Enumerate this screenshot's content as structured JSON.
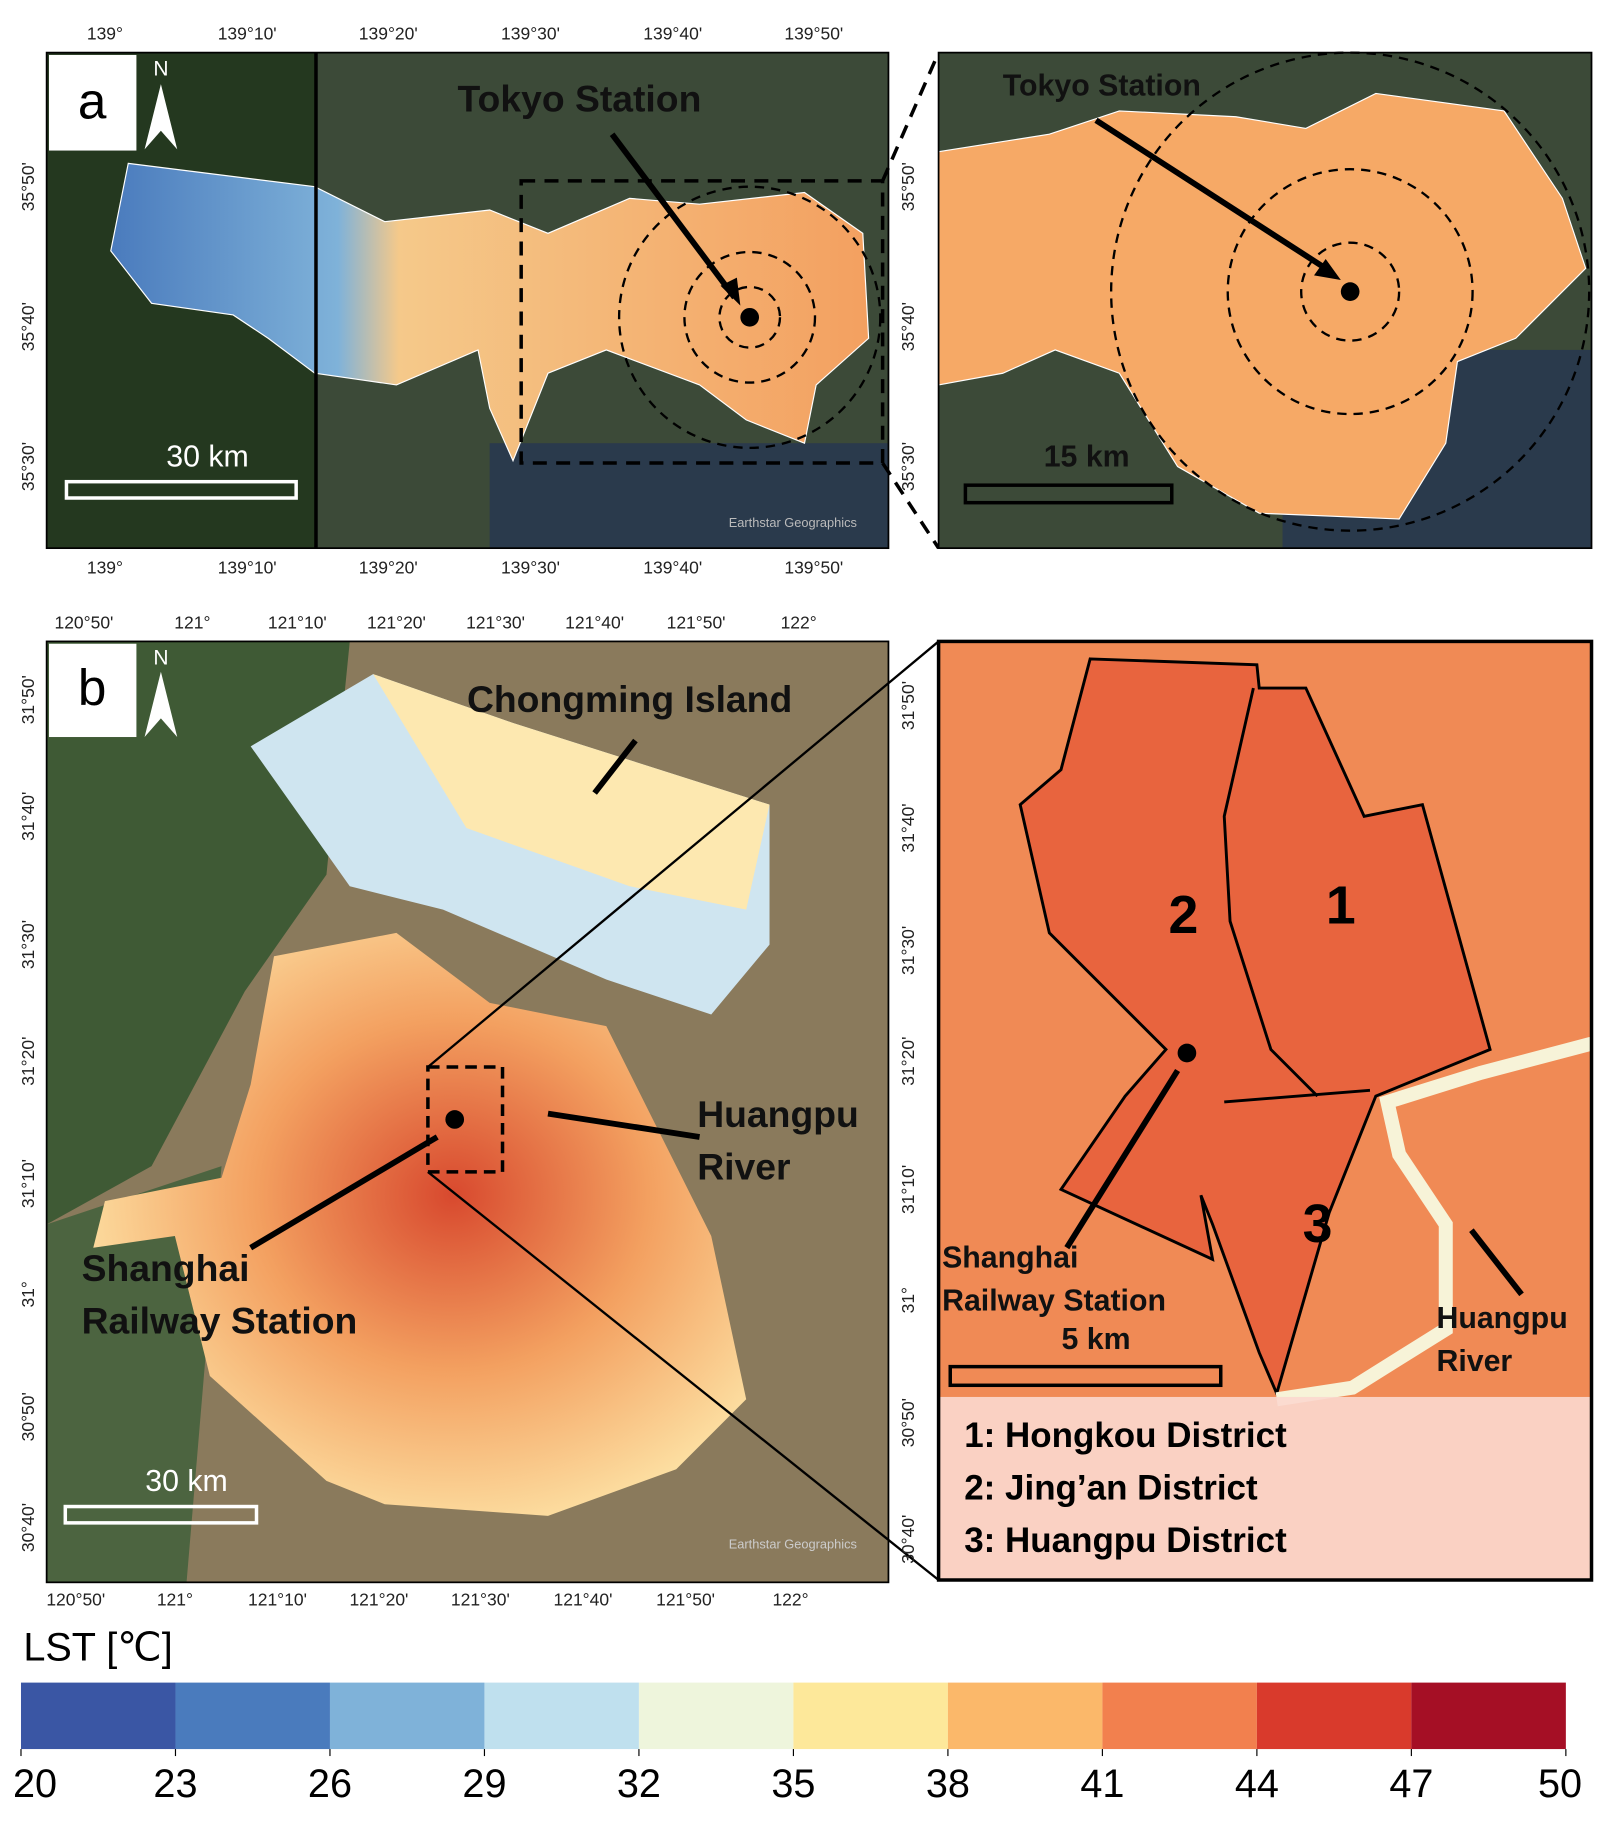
{
  "panel_a": {
    "label": "a",
    "north": "N",
    "annotation": "Tokyo Station",
    "scale_bar": "30 km",
    "top_ticks": [
      "139°",
      "139°10'",
      "139°20'",
      "139°30'",
      "139°40'",
      "139°50'"
    ],
    "bottom_ticks": [
      "139°",
      "139°10'",
      "139°20'",
      "139°30'",
      "139°40'",
      "139°50'"
    ],
    "left_ticks": [
      "35°50'",
      "35°40'",
      "35°30'"
    ],
    "right_ticks": [
      "35°50'",
      "35°40'",
      "35°30'"
    ],
    "credit": "Earthstar Geographics"
  },
  "panel_a_zoom": {
    "annotation": "Tokyo Station",
    "scale_bar": "15 km"
  },
  "panel_b": {
    "label": "b",
    "north": "N",
    "scale_bar": "30 km",
    "annotation_island": "Chongming Island",
    "annotation_river": "Huangpu River",
    "annotation_station": "Shanghai Railway  Station",
    "top_ticks": [
      "120°50'",
      "121°",
      "121°10'",
      "121°20'",
      "121°30'",
      "121°40'",
      "121°50'",
      "122°"
    ],
    "bottom_ticks": [
      "120°50'",
      "121°",
      "121°10'",
      "121°20'",
      "121°30'",
      "121°40'",
      "121°50'",
      "122°"
    ],
    "left_ticks": [
      "31°50'",
      "31°40'",
      "31°30'",
      "31°20'",
      "31°10'",
      "31°",
      "30°50'",
      "30°40'"
    ],
    "right_ticks": [
      "31°50'",
      "31°40'",
      "31°30'",
      "31°20'",
      "31°10'",
      "31°",
      "30°50'",
      "30°40'"
    ],
    "credit": "Earthstar Geographics"
  },
  "panel_b_zoom": {
    "districts": [
      "1",
      "2",
      "3"
    ],
    "annotation_station": "Shanghai Railway  Station",
    "annotation_river": "Huangpu River",
    "scale_bar": "5 km",
    "legend": [
      "1: Hongkou District",
      "2: Jing’an District",
      "3: Huangpu District"
    ]
  },
  "colorbar": {
    "title": "LST [℃]",
    "lim": [
      20,
      50
    ],
    "ticks": [
      20,
      23,
      26,
      29,
      32,
      35,
      38,
      41,
      44,
      47,
      50
    ],
    "colors": [
      "#3a56a4",
      "#4a7bbd",
      "#7fb2d9",
      "#bfe0ee",
      "#eef5dc",
      "#fde89a",
      "#fbb86a",
      "#f2804e",
      "#d93a2c",
      "#a50f25"
    ]
  }
}
